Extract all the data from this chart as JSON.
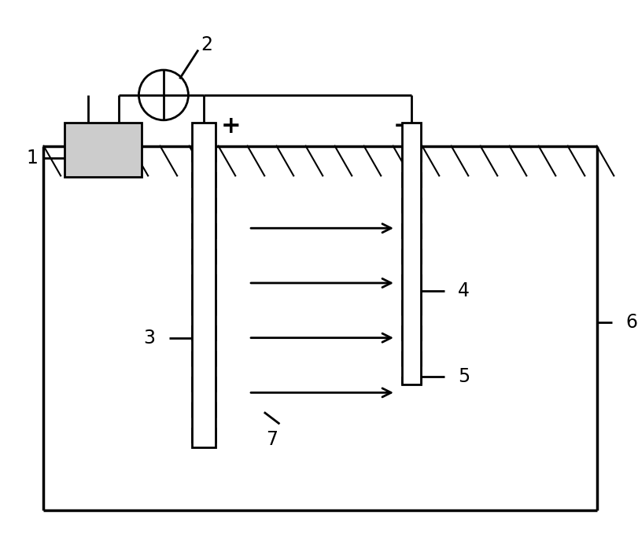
{
  "bg_color": "#ffffff",
  "line_color": "#000000",
  "lw": 2.0,
  "fig_width": 8.11,
  "fig_height": 6.97
}
